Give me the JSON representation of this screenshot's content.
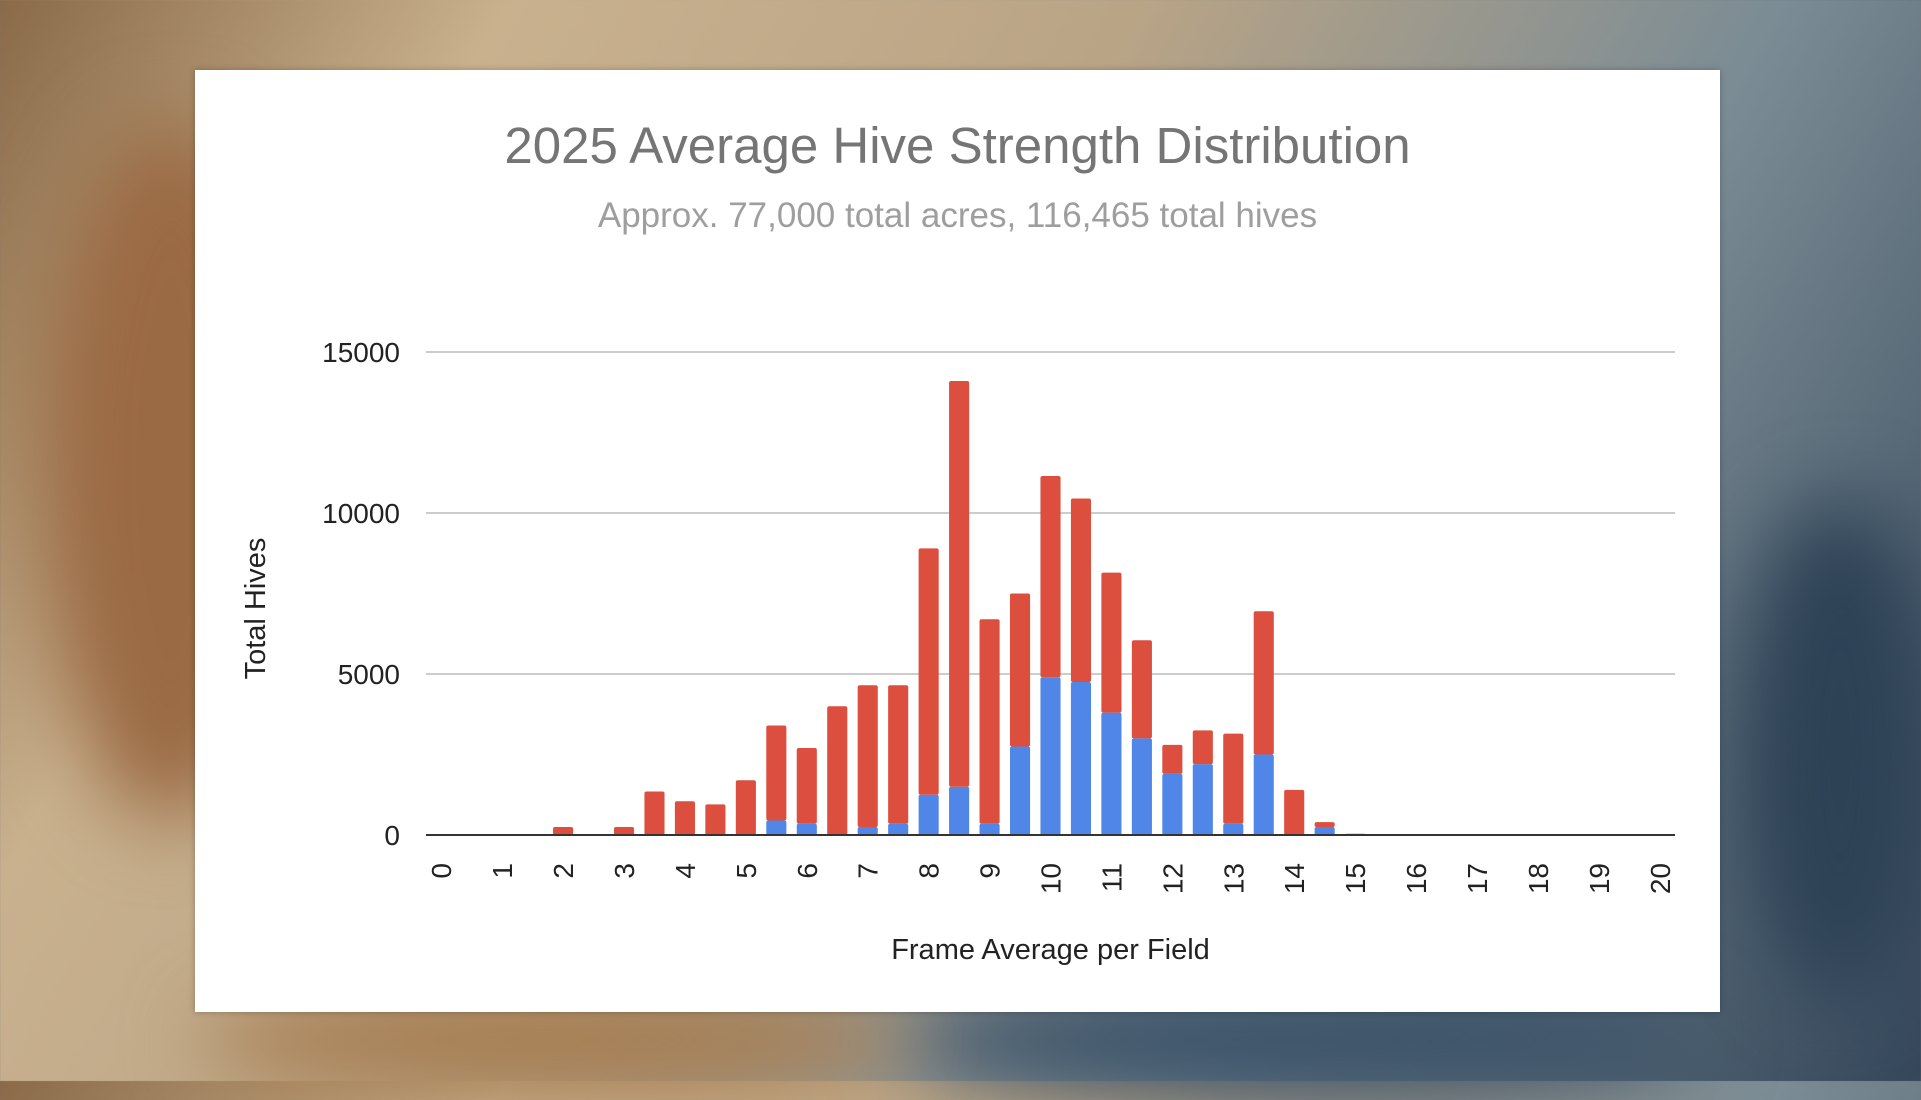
{
  "chart_data": {
    "type": "bar",
    "stacked": true,
    "title": "2025 Average Hive Strength Distribution",
    "subtitle": "Approx. 77,000 total acres, 116,465 total hives",
    "xlabel": "Frame Average per Field",
    "ylabel": "Total Hives",
    "ylim": [
      0,
      15000
    ],
    "yticks": [
      0,
      5000,
      10000,
      15000
    ],
    "xticks": [
      "0",
      "1",
      "2",
      "3",
      "4",
      "5",
      "6",
      "7",
      "8",
      "9",
      "10",
      "11",
      "12",
      "13",
      "14",
      "15",
      "16",
      "17",
      "18",
      "19",
      "20"
    ],
    "categories": [
      "0",
      "0.5",
      "1",
      "1.5",
      "2",
      "2.5",
      "3",
      "3.5",
      "4",
      "4.5",
      "5",
      "5.5",
      "6",
      "6.5",
      "7",
      "7.5",
      "8",
      "8.5",
      "9",
      "9.5",
      "10",
      "10.5",
      "11",
      "11.5",
      "12",
      "12.5",
      "13",
      "13.5",
      "14",
      "14.5",
      "15",
      "15.5",
      "16",
      "16.5",
      "17",
      "17.5",
      "18",
      "18.5",
      "19",
      "19.5",
      "20"
    ],
    "grid": true,
    "colors": {
      "lower": "#4f86e8",
      "upper": "#dc4f3e"
    },
    "series": [
      {
        "values": [
          0,
          0,
          0,
          0,
          0,
          0,
          0,
          0,
          0,
          0,
          0,
          450,
          350,
          0,
          250,
          350,
          1250,
          1500,
          350,
          2750,
          4900,
          4750,
          3800,
          3000,
          1900,
          2200,
          350,
          2500,
          0,
          250,
          20,
          0,
          0,
          0,
          0,
          0,
          0,
          0,
          0,
          0,
          0
        ]
      },
      {
        "values": [
          30,
          20,
          15,
          15,
          250,
          20,
          250,
          1350,
          1050,
          950,
          1700,
          2950,
          2350,
          4000,
          4400,
          4300,
          7650,
          12600,
          6350,
          4750,
          6250,
          5700,
          4350,
          3050,
          900,
          1050,
          2800,
          4450,
          1400,
          150,
          20,
          15,
          15,
          15,
          15,
          15,
          15,
          15,
          15,
          15,
          15
        ]
      }
    ]
  }
}
